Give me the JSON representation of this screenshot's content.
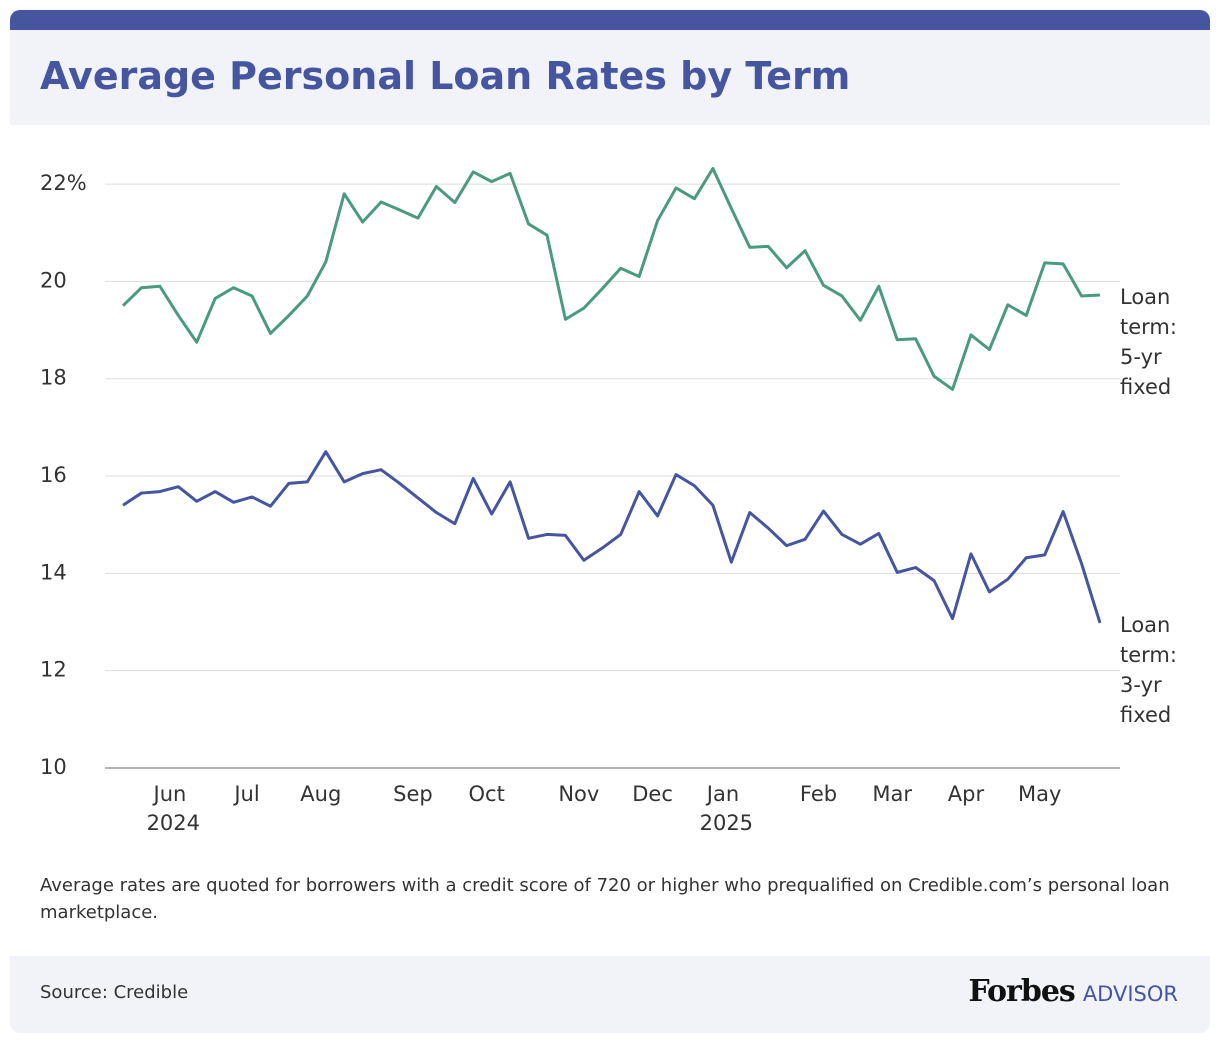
{
  "chart_data": {
    "type": "line",
    "title": "Average Personal Loan Rates by Term",
    "note": "Average rates are quoted for borrowers with a credit score of 720 or higher who prequalified on Credible.com’s personal loan marketplace.",
    "source": "Source: Credible",
    "brand": "Forbes",
    "brand_suffix": "ADVISOR",
    "categories": [
      null,
      null,
      null,
      "Jun 2024",
      null,
      null,
      null,
      "Jul",
      null,
      null,
      null,
      "Aug",
      null,
      null,
      null,
      null,
      "Sep",
      null,
      null,
      null,
      "Oct",
      null,
      null,
      null,
      null,
      "Nov",
      null,
      null,
      null,
      "Dec",
      null,
      null,
      null,
      "Jan 2025",
      null,
      null,
      null,
      null,
      "Feb",
      null,
      null,
      null,
      "Mar",
      null,
      null,
      null,
      "Apr",
      null,
      null,
      null,
      "May",
      null,
      null,
      null
    ],
    "series": [
      {
        "name": "Loan term: 5-yr fixed",
        "color": "#4a9a80",
        "values": [
          19.5,
          19.87,
          19.9,
          19.3,
          18.75,
          19.65,
          19.87,
          19.7,
          18.93,
          19.3,
          19.7,
          20.4,
          21.8,
          21.22,
          21.63,
          21.47,
          21.3,
          21.95,
          21.62,
          22.25,
          22.05,
          22.22,
          21.18,
          20.95,
          19.22,
          19.45,
          19.85,
          20.27,
          20.1,
          21.25,
          21.92,
          21.7,
          22.32,
          21.5,
          20.7,
          20.72,
          20.28,
          20.63,
          19.92,
          19.7,
          19.2,
          19.9,
          18.8,
          18.82,
          18.05,
          17.78,
          18.9,
          18.6,
          19.52,
          19.3,
          20.38,
          20.36,
          19.7,
          19.72
        ]
      },
      {
        "name": "Loan term: 3-yr fixed",
        "color": "#4555a0",
        "values": [
          15.4,
          15.65,
          15.68,
          15.78,
          15.48,
          15.68,
          15.46,
          15.57,
          15.38,
          15.85,
          15.88,
          16.5,
          15.88,
          16.05,
          16.13,
          15.85,
          15.55,
          15.25,
          15.02,
          15.95,
          15.22,
          15.88,
          14.72,
          14.8,
          14.78,
          14.27,
          14.52,
          14.8,
          15.68,
          15.18,
          16.03,
          15.8,
          15.4,
          14.23,
          15.25,
          14.93,
          14.57,
          14.7,
          15.28,
          14.8,
          14.6,
          14.82,
          14.02,
          14.12,
          13.85,
          13.07,
          14.4,
          13.62,
          13.88,
          14.32,
          14.38,
          15.27,
          14.2,
          12.98
        ]
      }
    ],
    "ylim": [
      10,
      22.7
    ],
    "yticks": [
      10,
      12,
      14,
      16,
      18,
      20,
      {
        "value": 22,
        "label": "22%"
      }
    ],
    "grid": true
  }
}
